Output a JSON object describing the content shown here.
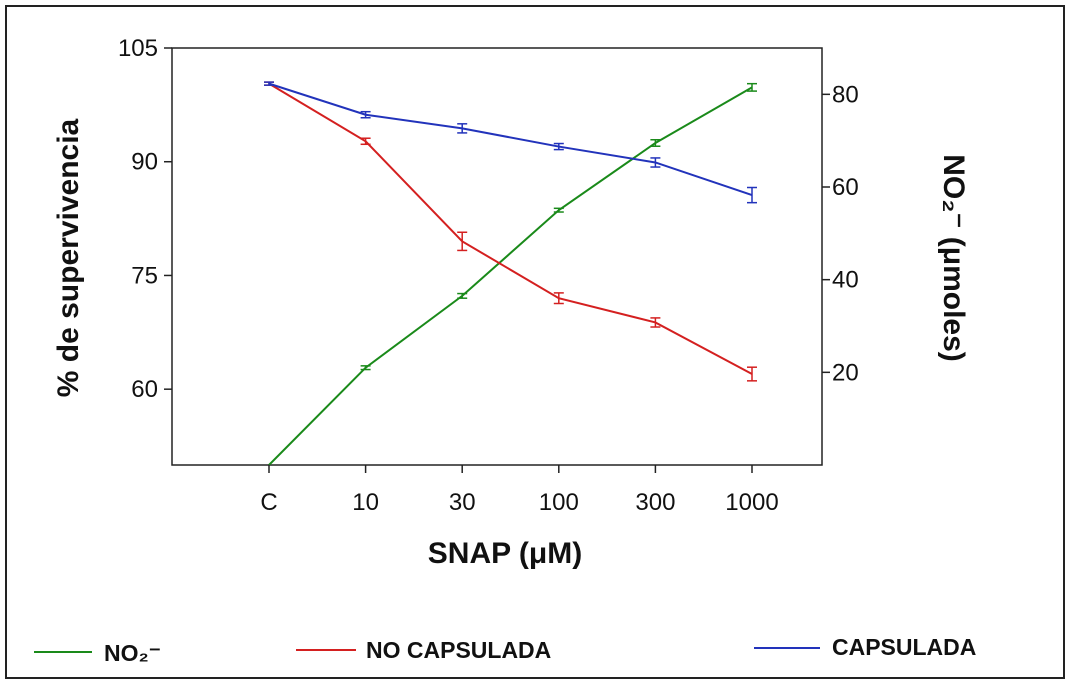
{
  "chart_data": {
    "type": "line",
    "categories": [
      "C",
      "10",
      "30",
      "100",
      "300",
      "1000"
    ],
    "xlabel": "SNAP (μM)",
    "ylabel": "% de supervivencia",
    "ylabel_right": "NO₂⁻ (μmoles)",
    "ylim": [
      50,
      105
    ],
    "ylim_right": [
      0,
      90
    ],
    "yticks": [
      "105",
      "90",
      "75",
      "60"
    ],
    "yticks_right": [
      "80",
      "60",
      "40",
      "20"
    ],
    "grid": false,
    "legend_position": "bottom",
    "series": [
      {
        "name": "NO₂⁻",
        "axis": "right",
        "color": "#1a8a1a",
        "values": [
          0,
          21,
          36.5,
          55,
          69.5,
          81.5
        ],
        "errors": [
          0,
          0.4,
          0.5,
          0.4,
          0.7,
          0.8
        ]
      },
      {
        "name": "NO CAPSULADA",
        "axis": "left",
        "color": "#d42020",
        "values": [
          100.3,
          92.7,
          79.5,
          72.0,
          68.8,
          62.0
        ],
        "errors": [
          0.2,
          0.4,
          1.2,
          0.7,
          0.6,
          0.9
        ]
      },
      {
        "name": "CAPSULADA",
        "axis": "left",
        "color": "#2233bb",
        "values": [
          100.3,
          96.2,
          94.4,
          92.0,
          89.9,
          85.6
        ],
        "errors": [
          0.2,
          0.4,
          0.6,
          0.4,
          0.6,
          1.0
        ]
      }
    ]
  }
}
